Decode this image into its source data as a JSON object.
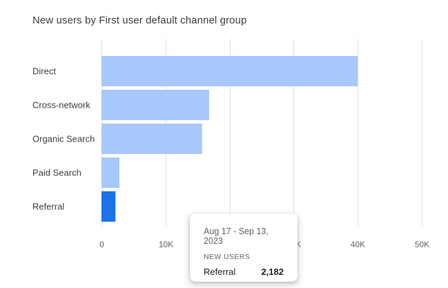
{
  "card": {
    "title": "New users by First user default channel group"
  },
  "chart_data": {
    "type": "bar",
    "orientation": "horizontal",
    "title": "New users by First user default channel group",
    "categories": [
      "Direct",
      "Cross-network",
      "Organic Search",
      "Paid Search",
      "Referral"
    ],
    "values": [
      40000,
      16800,
      15700,
      2800,
      2182
    ],
    "x_ticks": [
      "0",
      "10K",
      "20K",
      "30K",
      "40K",
      "50K"
    ],
    "xlim": [
      0,
      50000
    ],
    "grid": true,
    "highlighted_category": "Referral",
    "colors": {
      "bar": "#a8c7fa",
      "highlight": "#1a73e8",
      "grid": "#e0e0e0"
    }
  },
  "tooltip": {
    "date_range": "Aug 17 - Sep 13, 2023",
    "metric": "NEW USERS",
    "label": "Referral",
    "value": "2,182"
  }
}
